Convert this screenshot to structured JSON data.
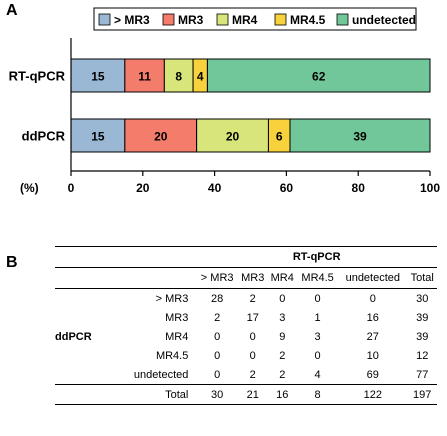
{
  "panel_a_label": "A",
  "panel_b_label": "B",
  "chart_data": {
    "type": "bar",
    "orientation": "horizontal",
    "stacked": true,
    "categories": [
      "RT-qPCR",
      "ddPCR"
    ],
    "series": [
      {
        "name": "> MR3",
        "color": "#9ab7d3",
        "values": [
          15,
          15
        ]
      },
      {
        "name": "MR3",
        "color": "#f47c6b",
        "values": [
          11,
          20
        ]
      },
      {
        "name": "MR4",
        "color": "#d8e57a",
        "values": [
          8,
          20
        ]
      },
      {
        "name": "MR4.5",
        "color": "#f7d23c",
        "values": [
          4,
          6
        ]
      },
      {
        "name": "undetected",
        "color": "#72c79a",
        "values": [
          62,
          39
        ]
      }
    ],
    "xlabel": "(%)",
    "xlim": [
      0,
      100
    ],
    "xticks": [
      "0",
      "20",
      "40",
      "60",
      "80",
      "100"
    ],
    "legend_position": "top"
  },
  "table": {
    "group_header": "RT-qPCR",
    "row_group_label": "ddPCR",
    "columns": [
      "> MR3",
      "MR3",
      "MR4",
      "MR4.5",
      "undetected",
      "Total"
    ],
    "rows": [
      {
        "label": "> MR3",
        "values": [
          "28",
          "2",
          "0",
          "0",
          "0",
          "30"
        ]
      },
      {
        "label": "MR3",
        "values": [
          "2",
          "17",
          "3",
          "1",
          "16",
          "39"
        ]
      },
      {
        "label": "MR4",
        "values": [
          "0",
          "0",
          "9",
          "3",
          "27",
          "39"
        ]
      },
      {
        "label": "MR4.5",
        "values": [
          "0",
          "0",
          "2",
          "0",
          "10",
          "12"
        ]
      },
      {
        "label": "undetected",
        "values": [
          "0",
          "2",
          "2",
          "4",
          "69",
          "77"
        ]
      }
    ],
    "total_row": {
      "label": "Total",
      "values": [
        "30",
        "21",
        "16",
        "8",
        "122",
        "197"
      ]
    }
  }
}
